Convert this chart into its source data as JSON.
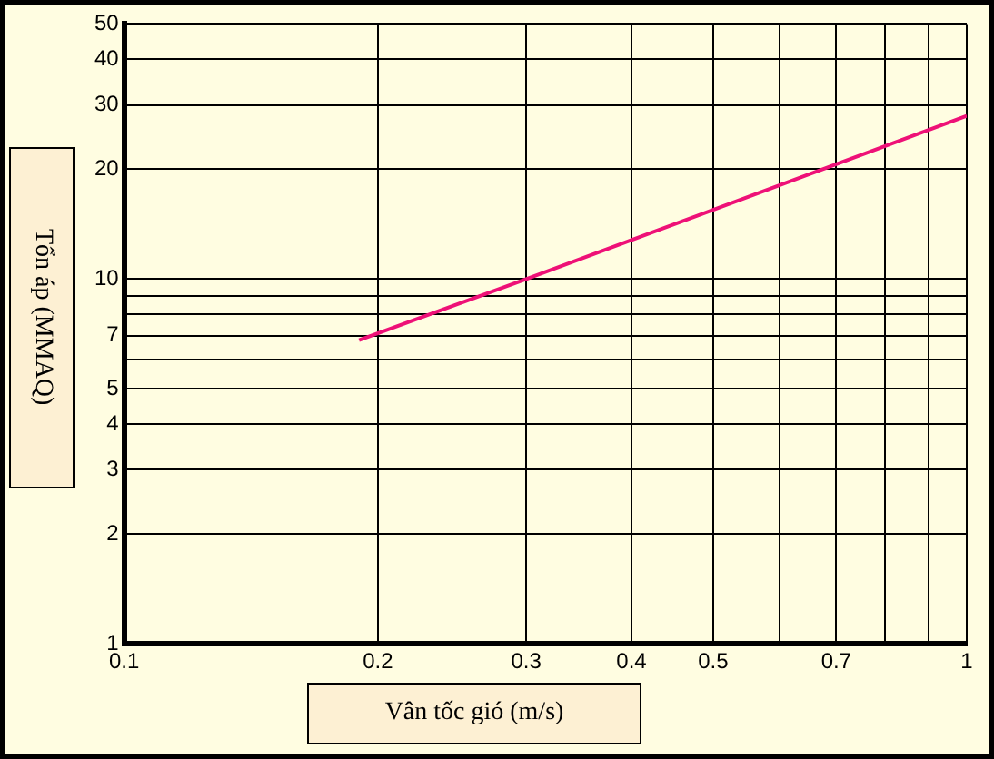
{
  "chart_data": {
    "type": "line",
    "xlabel": "Vân tốc gió (m/s)",
    "ylabel": "Tổn áp (MMAQ)",
    "log": "xy",
    "grid": true,
    "marker": "none",
    "line_style": "solid",
    "x": [
      0.19,
      0.3,
      1
    ],
    "series": [
      {
        "color": "#ee1177",
        "values": [
          6.8,
          10,
          28
        ]
      }
    ],
    "xlim": [
      0.1,
      1
    ],
    "ylim": [
      1,
      50
    ],
    "xticks": [
      0.1,
      0.2,
      0.3,
      0.4,
      0.5,
      {
        "value": 0.6,
        "label": null
      },
      0.7,
      {
        "value": 0.8,
        "label": null
      },
      {
        "value": 0.9,
        "label": null
      },
      1
    ],
    "yticks": [
      1,
      2,
      3,
      4,
      5,
      {
        "value": 6,
        "label": null
      },
      7,
      {
        "value": 8,
        "label": null
      },
      {
        "value": 9,
        "label": null
      },
      10,
      20,
      30,
      40,
      50
    ]
  }
}
